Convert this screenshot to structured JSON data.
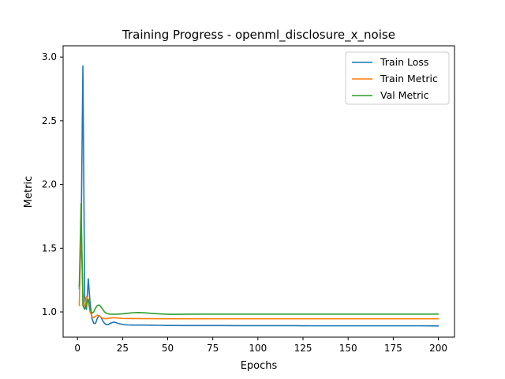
{
  "chart_data": {
    "type": "line",
    "title": "Training Progress - openml_disclosure_x_noise",
    "xlabel": "Epochs",
    "ylabel": "Metric",
    "xlim": [
      -7.95,
      208.95
    ],
    "ylim": [
      0.802,
      3.088
    ],
    "x_ticks": [
      0,
      25,
      50,
      75,
      100,
      125,
      150,
      175,
      200
    ],
    "y_ticks": [
      1.0,
      1.5,
      2.0,
      2.5,
      3.0
    ],
    "x_tick_labels": [
      "0",
      "25",
      "50",
      "75",
      "100",
      "125",
      "150",
      "175",
      "200"
    ],
    "y_tick_labels": [
      "1.0",
      "1.5",
      "2.0",
      "2.5",
      "3.0"
    ],
    "grid": false,
    "legend_position": "top-right",
    "series": [
      {
        "name": "Train Loss",
        "color": "#1f77b4",
        "points": [
          [
            1,
            1.18
          ],
          [
            2,
            1.55
          ],
          [
            3,
            2.93
          ],
          [
            4,
            1.12
          ],
          [
            5,
            1.02
          ],
          [
            6,
            1.26
          ],
          [
            7,
            1.07
          ],
          [
            8,
            0.95
          ],
          [
            9,
            0.91
          ],
          [
            10,
            0.91
          ],
          [
            11,
            0.95
          ],
          [
            12,
            0.97
          ],
          [
            13,
            0.96
          ],
          [
            14,
            0.93
          ],
          [
            15,
            0.91
          ],
          [
            16,
            0.9
          ],
          [
            17,
            0.9
          ],
          [
            18,
            0.91
          ],
          [
            19,
            0.915
          ],
          [
            20,
            0.92
          ],
          [
            21,
            0.918
          ],
          [
            22,
            0.912
          ],
          [
            24,
            0.905
          ],
          [
            26,
            0.9
          ],
          [
            28,
            0.898
          ],
          [
            30,
            0.897
          ],
          [
            35,
            0.897
          ],
          [
            40,
            0.896
          ],
          [
            45,
            0.895
          ],
          [
            50,
            0.894
          ],
          [
            60,
            0.893
          ],
          [
            70,
            0.893
          ],
          [
            80,
            0.893
          ],
          [
            90,
            0.892
          ],
          [
            100,
            0.892
          ],
          [
            110,
            0.892
          ],
          [
            120,
            0.892
          ],
          [
            130,
            0.891
          ],
          [
            140,
            0.891
          ],
          [
            150,
            0.891
          ],
          [
            160,
            0.891
          ],
          [
            170,
            0.891
          ],
          [
            180,
            0.891
          ],
          [
            190,
            0.891
          ],
          [
            200,
            0.89
          ]
        ]
      },
      {
        "name": "Train Metric",
        "color": "#ff7f0e",
        "points": [
          [
            1,
            1.05
          ],
          [
            2,
            1.7
          ],
          [
            3,
            1.15
          ],
          [
            4,
            1.02
          ],
          [
            5,
            1.12
          ],
          [
            6,
            1.08
          ],
          [
            7,
            1.0
          ],
          [
            8,
            0.965
          ],
          [
            9,
            0.955
          ],
          [
            10,
            0.965
          ],
          [
            11,
            0.975
          ],
          [
            12,
            0.968
          ],
          [
            13,
            0.958
          ],
          [
            14,
            0.95
          ],
          [
            15,
            0.947
          ],
          [
            16,
            0.947
          ],
          [
            18,
            0.952
          ],
          [
            20,
            0.955
          ],
          [
            22,
            0.952
          ],
          [
            25,
            0.949
          ],
          [
            30,
            0.948
          ],
          [
            40,
            0.947
          ],
          [
            50,
            0.946
          ],
          [
            60,
            0.946
          ],
          [
            80,
            0.946
          ],
          [
            100,
            0.946
          ],
          [
            120,
            0.946
          ],
          [
            140,
            0.946
          ],
          [
            160,
            0.946
          ],
          [
            180,
            0.946
          ],
          [
            200,
            0.946
          ]
        ]
      },
      {
        "name": "Val Metric",
        "color": "#2ca02c",
        "points": [
          [
            1,
            1.2
          ],
          [
            2,
            1.85
          ],
          [
            3,
            1.05
          ],
          [
            4,
            1.02
          ],
          [
            5,
            1.06
          ],
          [
            6,
            1.1
          ],
          [
            7,
            1.02
          ],
          [
            8,
            0.99
          ],
          [
            9,
            1.0
          ],
          [
            10,
            1.03
          ],
          [
            11,
            1.05
          ],
          [
            12,
            1.055
          ],
          [
            13,
            1.04
          ],
          [
            14,
            1.02
          ],
          [
            15,
            1.0
          ],
          [
            16,
            0.99
          ],
          [
            17,
            0.985
          ],
          [
            18,
            0.983
          ],
          [
            20,
            0.982
          ],
          [
            22,
            0.982
          ],
          [
            25,
            0.985
          ],
          [
            28,
            0.99
          ],
          [
            31,
            0.994
          ],
          [
            34,
            0.995
          ],
          [
            37,
            0.993
          ],
          [
            40,
            0.99
          ],
          [
            44,
            0.986
          ],
          [
            48,
            0.983
          ],
          [
            52,
            0.981
          ],
          [
            56,
            0.981
          ],
          [
            60,
            0.982
          ],
          [
            70,
            0.983
          ],
          [
            80,
            0.983
          ],
          [
            90,
            0.983
          ],
          [
            100,
            0.983
          ],
          [
            120,
            0.983
          ],
          [
            140,
            0.983
          ],
          [
            160,
            0.983
          ],
          [
            180,
            0.983
          ],
          [
            200,
            0.983
          ]
        ]
      }
    ]
  }
}
